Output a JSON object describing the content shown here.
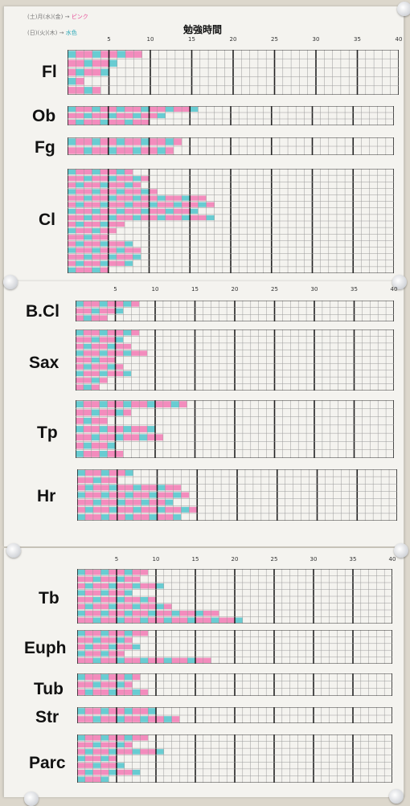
{
  "poster": {
    "title": "勉強時間",
    "legend_note_line1": "(土)月(水)(金)",
    "legend_note_line1_pink": "ピンク",
    "legend_note_line2": "(日)(火)(木)",
    "legend_note_line2_blue": "水色",
    "axis_ticks": [
      "5",
      "10",
      "15",
      "20",
      "25",
      "30",
      "35",
      "40"
    ],
    "colors": {
      "pink": "#f279b4",
      "blue": "#4fc4cc",
      "paper": "#f4f3ef",
      "grid": "#9a9a9a"
    }
  },
  "sections": [
    {
      "label": "Fl",
      "bars": [
        9,
        6,
        5,
        2,
        4
      ]
    },
    {
      "label": "Ob",
      "bars": [
        16,
        12,
        10
      ]
    },
    {
      "label": "Fg",
      "bars": [
        14,
        13
      ]
    },
    {
      "label": "Cl",
      "bars": [
        8,
        10,
        9,
        11,
        17,
        18,
        16,
        18,
        7,
        6,
        5,
        8,
        9,
        9,
        8,
        5
      ]
    },
    {
      "label": "B.Cl",
      "bars": [
        8,
        6,
        4
      ]
    },
    {
      "label": "Sax",
      "bars": [
        8,
        6,
        7,
        9,
        5,
        6,
        7,
        4,
        3
      ]
    },
    {
      "label": "Tp",
      "bars": [
        14,
        7,
        4,
        10,
        11,
        5,
        6
      ]
    },
    {
      "label": "Hr",
      "bars": [
        7,
        5,
        13,
        14,
        12,
        15,
        13
      ]
    },
    {
      "label": "Tb",
      "bars": [
        9,
        8,
        11,
        7,
        10,
        12,
        18,
        21
      ]
    },
    {
      "label": "Euph",
      "bars": [
        9,
        7,
        8,
        6,
        17
      ]
    },
    {
      "label": "Tub",
      "bars": [
        8,
        7,
        9
      ]
    },
    {
      "label": "Str",
      "bars": [
        10,
        13
      ]
    },
    {
      "label": "Parc",
      "bars": [
        9,
        7,
        11,
        5,
        6,
        8,
        4
      ]
    }
  ]
}
